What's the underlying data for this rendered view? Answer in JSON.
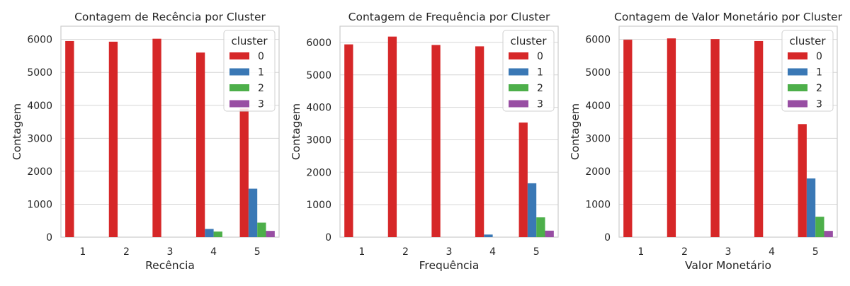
{
  "chart_data": [
    {
      "type": "bar",
      "title": "Contagem de Recência por Cluster",
      "xlabel": "Recência",
      "ylabel": "Contagem",
      "categories": [
        "1",
        "2",
        "3",
        "4",
        "5"
      ],
      "ylim": [
        0,
        6400
      ],
      "yticks": [
        "0",
        "1000",
        "2000",
        "3000",
        "4000",
        "5000",
        "6000"
      ],
      "legend": {
        "title": "cluster",
        "placement": "top-right"
      },
      "series": [
        {
          "name": "0",
          "color": "#d62728",
          "values": [
            5950,
            5930,
            6020,
            5600,
            3900
          ]
        },
        {
          "name": "1",
          "color": "#3a78b5",
          "values": [
            0,
            0,
            0,
            250,
            1470
          ]
        },
        {
          "name": "2",
          "color": "#4daf4a",
          "values": [
            0,
            0,
            0,
            170,
            440
          ]
        },
        {
          "name": "3",
          "color": "#984ea3",
          "values": [
            0,
            0,
            0,
            0,
            190
          ]
        }
      ]
    },
    {
      "type": "bar",
      "title": "Contagem de Frequência por Cluster",
      "xlabel": "Frequência",
      "ylabel": "Contagem",
      "categories": [
        "1",
        "2",
        "3",
        "4",
        "5"
      ],
      "ylim": [
        0,
        6500
      ],
      "yticks": [
        "0",
        "1000",
        "2000",
        "3000",
        "4000",
        "5000",
        "6000"
      ],
      "legend": {
        "title": "cluster",
        "placement": "top-right"
      },
      "series": [
        {
          "name": "0",
          "color": "#d62728",
          "values": [
            5940,
            6180,
            5920,
            5880,
            3530
          ]
        },
        {
          "name": "1",
          "color": "#3a78b5",
          "values": [
            0,
            0,
            0,
            80,
            1660
          ]
        },
        {
          "name": "2",
          "color": "#4daf4a",
          "values": [
            0,
            0,
            0,
            0,
            610
          ]
        },
        {
          "name": "3",
          "color": "#984ea3",
          "values": [
            0,
            0,
            0,
            0,
            200
          ]
        }
      ]
    },
    {
      "type": "bar",
      "title": "Contagem de Valor Monetário por Cluster",
      "xlabel": "Valor Monetário",
      "ylabel": "Contagem",
      "categories": [
        "1",
        "2",
        "3",
        "4",
        "5"
      ],
      "ylim": [
        0,
        6400
      ],
      "yticks": [
        "0",
        "1000",
        "2000",
        "3000",
        "4000",
        "5000",
        "6000"
      ],
      "legend": {
        "title": "cluster",
        "placement": "top-right"
      },
      "series": [
        {
          "name": "0",
          "color": "#d62728",
          "values": [
            5990,
            6030,
            6010,
            5950,
            3430
          ]
        },
        {
          "name": "1",
          "color": "#3a78b5",
          "values": [
            0,
            0,
            0,
            0,
            1780
          ]
        },
        {
          "name": "2",
          "color": "#4daf4a",
          "values": [
            0,
            0,
            0,
            0,
            620
          ]
        },
        {
          "name": "3",
          "color": "#984ea3",
          "values": [
            0,
            0,
            0,
            0,
            190
          ]
        }
      ]
    }
  ]
}
